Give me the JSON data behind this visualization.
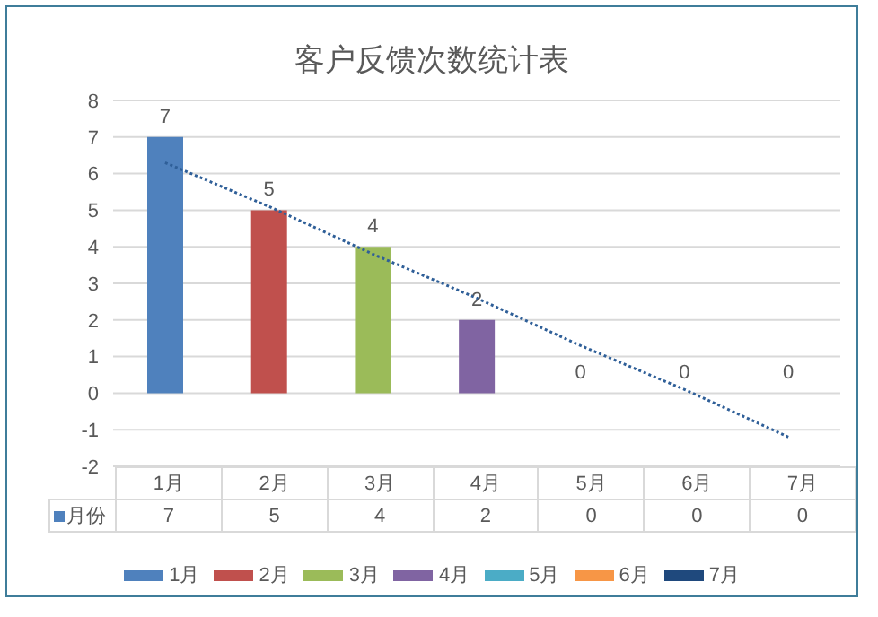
{
  "chart_data": {
    "type": "bar",
    "title": "客户反馈次数统计表",
    "categories": [
      "1月",
      "2月",
      "3月",
      "4月",
      "5月",
      "6月",
      "7月"
    ],
    "series": [
      {
        "name": "月份",
        "values": [
          7,
          5,
          4,
          2,
          0,
          0,
          0
        ],
        "value_labels": [
          "7",
          "5",
          "4",
          "2",
          "0",
          "0",
          "0"
        ],
        "colors": [
          "#4f81bd",
          "#c0504d",
          "#9bbb59",
          "#8064a2",
          "#4bacc6",
          "#f79646",
          "#1f497d"
        ]
      },
      {
        "type": "line",
        "color": "#2f5f98",
        "values": [
          6.3,
          5.1,
          3.8,
          2.6,
          1.3,
          0.1,
          -1.2
        ],
        "line_style": "dotted",
        "marker": "none"
      }
    ],
    "ylim": [
      -2,
      8
    ],
    "yticks": [
      -2,
      -1,
      0,
      1,
      2,
      3,
      4,
      5,
      6,
      7,
      8
    ],
    "grid": "y",
    "legend": "bottom"
  }
}
